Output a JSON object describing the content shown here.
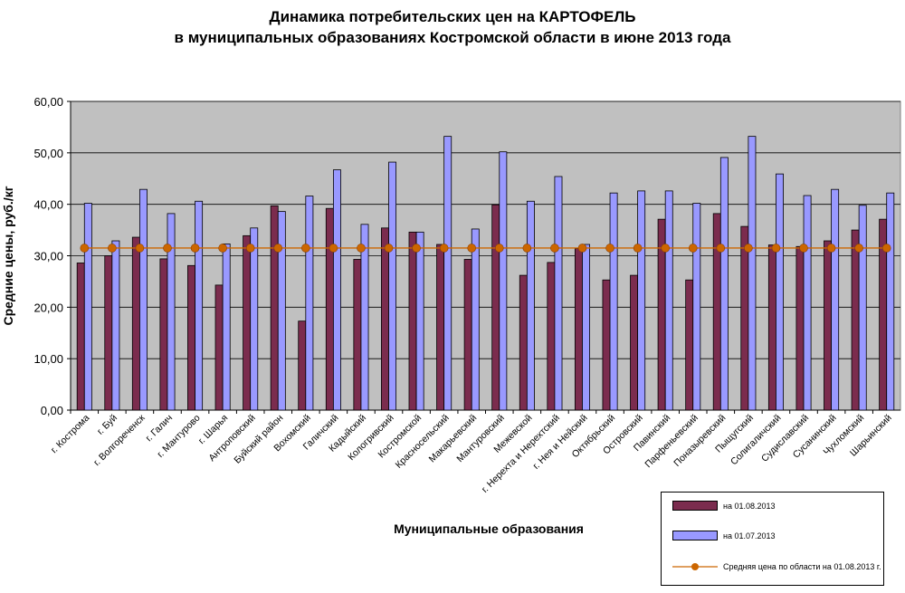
{
  "chart_data": {
    "type": "bar",
    "title_line1": "Динамика потребительских цен на КАРТОФЕЛЬ",
    "title_line2": "в муниципальных образованиях Костромской области в июне 2013 года",
    "ylabel": "Средние цены, руб./кг",
    "xlabel": "Муниципальные  образования",
    "ylim": [
      0,
      60
    ],
    "yticks": [
      "0,00",
      "10,00",
      "20,00",
      "30,00",
      "40,00",
      "50,00",
      "60,00"
    ],
    "grid": true,
    "legend_position": "bottom-right",
    "categories": [
      "г. Кострома",
      "г. Буй",
      "г. Волгореченск",
      "г. Галич",
      "г. Мантурово",
      "г. Шарья",
      "Антроповский",
      "Буйский район",
      "Вохомский",
      "Галичский",
      "Кадыйский",
      "Кологривский",
      "Костромской",
      "Красносельский",
      "Макарьевский",
      "Мантуровский",
      "Межевской",
      "г. Нерехта и Нерехтский",
      "г. Нея и Нейский",
      "Октябрьский",
      "Островский",
      "Павинский",
      "Парфеньевский",
      "Поназыревский",
      "Пыщугский",
      "Солигаличский",
      "Судиславский",
      "Сусанинский",
      "Чухломский",
      "Шарьинский"
    ],
    "series": [
      {
        "name": "на 01.08.2013",
        "color": "#7B2C4E",
        "values": [
          28.6,
          30.0,
          33.6,
          29.4,
          28.1,
          24.3,
          33.9,
          39.7,
          17.3,
          39.2,
          29.3,
          35.4,
          34.6,
          32.2,
          29.3,
          39.9,
          26.2,
          28.7,
          31.4,
          25.3,
          26.2,
          37.1,
          25.3,
          38.2,
          35.7,
          32.1,
          31.8,
          32.9,
          35.0,
          37.1
        ]
      },
      {
        "name": "на 01.07.2013",
        "color": "#9999FF",
        "values": [
          40.2,
          32.9,
          42.9,
          38.2,
          40.6,
          32.3,
          35.4,
          38.6,
          41.6,
          46.7,
          36.1,
          48.2,
          34.6,
          53.2,
          35.2,
          50.2,
          40.6,
          45.4,
          32.2,
          42.2,
          42.6,
          42.6,
          40.2,
          49.1,
          53.2,
          45.9,
          41.7,
          42.9,
          39.8,
          42.2
        ]
      }
    ],
    "line_series": {
      "name": "Средняя цена по  области на 01.08.2013 г.",
      "color": "#CC6600",
      "value": 31.5
    },
    "plot_background": "#C0C0C0"
  }
}
